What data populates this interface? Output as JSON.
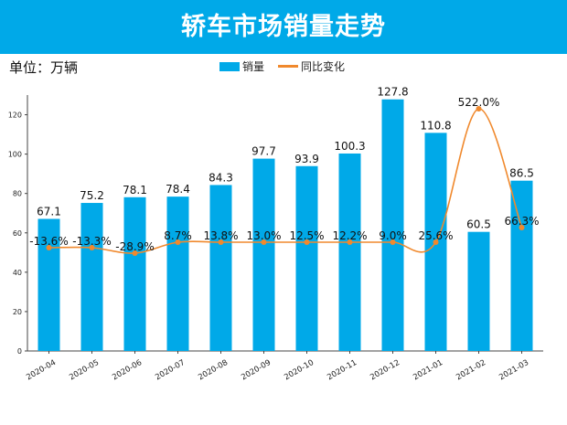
{
  "banner": {
    "title": "轿车市场销量走势"
  },
  "unit_label": "单位：万辆",
  "legend": {
    "bar_label": "销量",
    "line_label": "同比变化"
  },
  "colors": {
    "banner": "#00a9e8",
    "bar": "#00a9e8",
    "line": "#f0892d"
  },
  "chart_data": {
    "type": "bar",
    "title": "轿车市场销量走势",
    "ylabel": "万辆",
    "ylim": [
      0,
      130
    ],
    "yticks": [
      0,
      20,
      40,
      60,
      80,
      100,
      120
    ],
    "categories": [
      "2020-04",
      "2020-05",
      "2020-06",
      "2020-07",
      "2020-08",
      "2020-09",
      "2020-10",
      "2020-11",
      "2020-12",
      "2021-01",
      "2021-02",
      "2021-03"
    ],
    "series": [
      {
        "name": "销量",
        "kind": "bar",
        "values": [
          67.1,
          75.2,
          78.1,
          78.4,
          84.3,
          97.7,
          93.9,
          100.3,
          127.8,
          110.8,
          60.5,
          86.5
        ],
        "labels": [
          "67.1",
          "75.2",
          "78.1",
          "78.4",
          "84.3",
          "97.7",
          "93.9",
          "100.3",
          "127.8",
          "110.8",
          "60.5",
          "86.5"
        ]
      },
      {
        "name": "同比变化",
        "kind": "line",
        "axis": "secondary",
        "values": [
          -13.6,
          -13.3,
          -28.9,
          8.7,
          13.8,
          13.0,
          12.5,
          12.2,
          9.0,
          25.6,
          522.0,
          66.3
        ],
        "labels": [
          "-13.6%",
          "-13.3%",
          "-28.9%",
          "8.7%",
          "13.8%",
          "13.0%",
          "12.5%",
          "12.2%",
          "9.0%",
          "25.6%",
          "522.0%",
          "66.3%"
        ]
      }
    ]
  }
}
